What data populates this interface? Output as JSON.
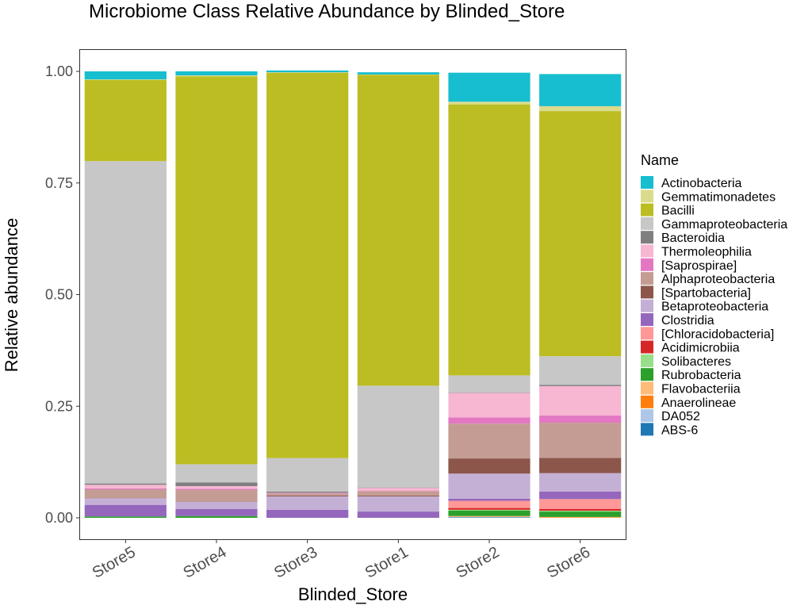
{
  "chart_data": {
    "type": "bar",
    "stacked": true,
    "title": "Microbiome Class Relative Abundance by Blinded_Store",
    "xlabel": "Blinded_Store",
    "ylabel": "Relative abundance",
    "ylim": [
      -0.05,
      1.05
    ],
    "yticks": [
      0.0,
      0.25,
      0.5,
      0.75,
      1.0
    ],
    "ytick_labels": [
      "0.00",
      "0.25",
      "0.50",
      "0.75",
      "1.00"
    ],
    "categories": [
      "Store5",
      "Store4",
      "Store3",
      "Store1",
      "Store2",
      "Store6"
    ],
    "legend_title": "Name",
    "legend_position": "right",
    "grid": false,
    "series": [
      {
        "name": "Actinobacteria",
        "color": "#17becf",
        "values": [
          0.018,
          0.009,
          0.004,
          0.005,
          0.065,
          0.072
        ]
      },
      {
        "name": "Gemmatimonadetes",
        "color": "#dbdb8d",
        "values": [
          0.001,
          0.002,
          0.001,
          0.001,
          0.006,
          0.011
        ]
      },
      {
        "name": "Bacilli",
        "color": "#bcbd22",
        "values": [
          0.182,
          0.869,
          0.863,
          0.696,
          0.607,
          0.549
        ]
      },
      {
        "name": "Gammaproteobacteria",
        "color": "#c7c7c7",
        "values": [
          0.722,
          0.041,
          0.075,
          0.228,
          0.038,
          0.064
        ]
      },
      {
        "name": "Bacteroidia",
        "color": "#7f7f7f",
        "values": [
          0.003,
          0.008,
          0.003,
          0.001,
          0.001,
          0.003
        ]
      },
      {
        "name": "Thermoleophilia",
        "color": "#f7b6d2",
        "values": [
          0.008,
          0.006,
          0.001,
          0.006,
          0.055,
          0.066
        ]
      },
      {
        "name": "[Saprospirae]",
        "color": "#e377c2",
        "values": [
          0.002,
          0.002,
          0.001,
          0.001,
          0.014,
          0.016
        ]
      },
      {
        "name": "Alphaproteobacteria",
        "color": "#c49c94",
        "values": [
          0.019,
          0.026,
          0.004,
          0.01,
          0.078,
          0.079
        ]
      },
      {
        "name": "[Spartobacteria]",
        "color": "#8c564b",
        "values": [
          0.001,
          0.001,
          0.002,
          0.002,
          0.034,
          0.034
        ]
      },
      {
        "name": "Betaproteobacteria",
        "color": "#c5b0d5",
        "values": [
          0.015,
          0.016,
          0.03,
          0.034,
          0.056,
          0.041
        ]
      },
      {
        "name": "Clostridia",
        "color": "#9467bd",
        "values": [
          0.026,
          0.016,
          0.018,
          0.014,
          0.005,
          0.017
        ]
      },
      {
        "name": "[Chloracidobacteria]",
        "color": "#ff9896",
        "values": [
          0.0,
          0.0,
          0.0,
          0.0,
          0.016,
          0.022
        ]
      },
      {
        "name": "Acidimicrobiia",
        "color": "#d62728",
        "values": [
          0.0,
          0.0,
          0.0,
          0.0,
          0.004,
          0.004
        ]
      },
      {
        "name": "Solibacteres",
        "color": "#98df8a",
        "values": [
          0.0,
          0.0,
          0.0,
          0.0,
          0.002,
          0.002
        ]
      },
      {
        "name": "Rubrobacteria",
        "color": "#2ca02c",
        "values": [
          0.003,
          0.004,
          0.0,
          0.0,
          0.012,
          0.012
        ]
      },
      {
        "name": "Flavobacteriia",
        "color": "#ffbb78",
        "values": [
          0.0,
          0.0,
          0.0,
          0.0,
          0.001,
          0.001
        ]
      },
      {
        "name": "Anaerolineae",
        "color": "#ff7f0e",
        "values": [
          0.0,
          0.0,
          0.0,
          0.0,
          0.001,
          0.001
        ]
      },
      {
        "name": "DA052",
        "color": "#aec7e8",
        "values": [
          0.0,
          0.0,
          0.0,
          0.0,
          0.001,
          0.0
        ]
      },
      {
        "name": "ABS-6",
        "color": "#1f77b4",
        "values": [
          0.0,
          0.0,
          0.0,
          0.0,
          0.001,
          0.0
        ]
      }
    ]
  }
}
